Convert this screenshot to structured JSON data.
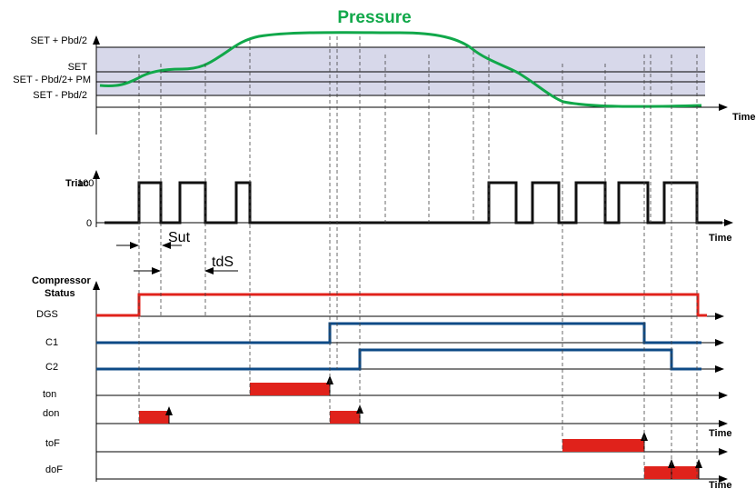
{
  "title": "Pressure",
  "pressure_labels": {
    "set_plus": "SET + Pbd/2",
    "set": "SET",
    "set_minus_pm": "SET - Pbd/2+ PM",
    "set_minus": "SET - Pbd/2"
  },
  "time_label": "Time",
  "triac": {
    "label": "Triac",
    "high": "100",
    "low": "0"
  },
  "timers": {
    "sut": "Sut",
    "tds": "tdS"
  },
  "compressor": {
    "title_line1": "Compressor",
    "title_line2": "Status",
    "rows": [
      "DGS",
      "C1",
      "C2",
      "ton",
      "don",
      "toF",
      "doF"
    ]
  },
  "colors": {
    "pressure_curve": "#11a84a",
    "band": "#d7d8ea",
    "dgs": "#e0221b",
    "compressor": "#0d4a86",
    "timer_block": "#e0221b"
  }
}
